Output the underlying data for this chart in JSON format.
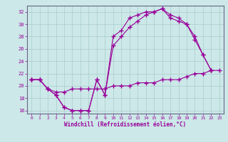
{
  "xlabel": "Windchill (Refroidissement éolien,°C)",
  "bg_color": "#cce8e8",
  "line_color": "#990099",
  "grid_color": "#aacccc",
  "spine_color": "#666688",
  "xlim": [
    -0.5,
    23.5
  ],
  "ylim": [
    15.5,
    33
  ],
  "xticks": [
    0,
    1,
    2,
    3,
    4,
    5,
    6,
    7,
    8,
    9,
    10,
    11,
    12,
    13,
    14,
    15,
    16,
    17,
    18,
    19,
    20,
    21,
    22,
    23
  ],
  "yticks": [
    16,
    18,
    20,
    22,
    24,
    26,
    28,
    30,
    32
  ],
  "line1_x": [
    0,
    1,
    2,
    3,
    4,
    5,
    6,
    7,
    8,
    9,
    10,
    11,
    12,
    13,
    14,
    15,
    16,
    17,
    18,
    19,
    20,
    21,
    22
  ],
  "line1_y": [
    21,
    21,
    19.5,
    18.5,
    16.5,
    16,
    16,
    16,
    21,
    18.5,
    26.5,
    28,
    29.5,
    30.5,
    31.5,
    32,
    32.5,
    31.5,
    31,
    30,
    27.5,
    25,
    22.5
  ],
  "line2_x": [
    0,
    1,
    2,
    3,
    4,
    5,
    6,
    7,
    8,
    9,
    10,
    11,
    12,
    13,
    14,
    15,
    16,
    17,
    18,
    19,
    20,
    21,
    22
  ],
  "line2_y": [
    21,
    21,
    19.5,
    18.5,
    16.5,
    16,
    16,
    16,
    21,
    18.5,
    28,
    29,
    31,
    31.5,
    32,
    32,
    32.5,
    31,
    30.5,
    30,
    28,
    25,
    22.5
  ],
  "line3_x": [
    0,
    1,
    2,
    3,
    4,
    5,
    6,
    7,
    8,
    9,
    10,
    11,
    12,
    13,
    14,
    15,
    16,
    17,
    18,
    19,
    20,
    21,
    22,
    23
  ],
  "line3_y": [
    21,
    21,
    19.5,
    19,
    19,
    19.5,
    19.5,
    19.5,
    19.5,
    19.5,
    20,
    20,
    20,
    20.5,
    20.5,
    20.5,
    21,
    21,
    21,
    21.5,
    22,
    22,
    22.5,
    22.5
  ]
}
